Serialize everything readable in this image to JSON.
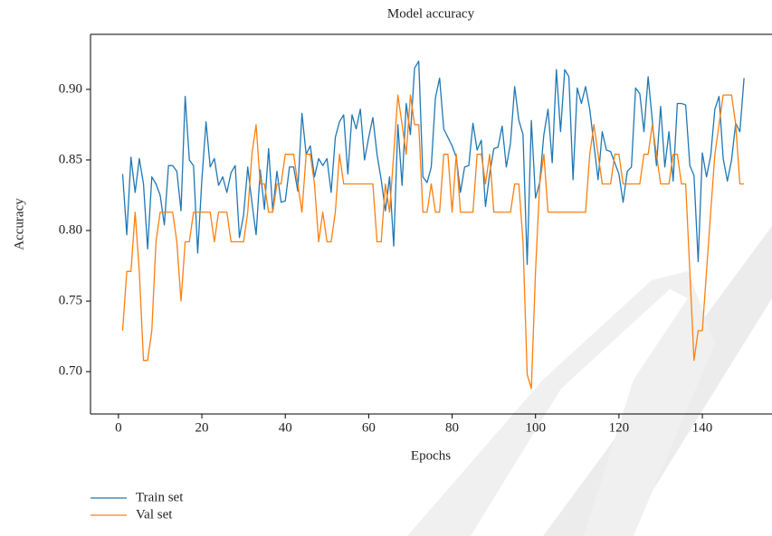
{
  "chart_data": {
    "type": "line",
    "title": "Model accuracy",
    "xlabel": "Epochs",
    "ylabel": "Accuracy",
    "x": [
      1,
      2,
      3,
      4,
      5,
      6,
      7,
      8,
      9,
      10,
      11,
      12,
      13,
      14,
      15,
      16,
      17,
      18,
      19,
      20,
      21,
      22,
      23,
      24,
      25,
      26,
      27,
      28,
      29,
      30,
      31,
      32,
      33,
      34,
      35,
      36,
      37,
      38,
      39,
      40,
      41,
      42,
      43,
      44,
      45,
      46,
      47,
      48,
      49,
      50,
      51,
      52,
      53,
      54,
      55,
      56,
      57,
      58,
      59,
      60,
      61,
      62,
      63,
      64,
      65,
      66,
      67,
      68,
      69,
      70,
      71,
      72,
      73,
      74,
      75,
      76,
      77,
      78,
      79,
      80,
      81,
      82,
      83,
      84,
      85,
      86,
      87,
      88,
      89,
      90,
      91,
      92,
      93,
      94,
      95,
      96,
      97,
      98,
      99,
      100,
      101,
      102,
      103,
      104,
      105,
      106,
      107,
      108,
      109,
      110,
      111,
      112,
      113,
      114,
      115,
      116,
      117,
      118,
      119,
      120,
      121,
      122,
      123,
      124,
      125,
      126,
      127,
      128,
      129,
      130,
      131,
      132,
      133,
      134,
      135,
      136,
      137,
      138,
      139,
      140,
      141,
      142,
      143,
      144,
      145,
      146,
      147,
      148,
      149,
      150
    ],
    "series": [
      {
        "name": "Train set",
        "color": "#1f77b4",
        "values": [
          0.84,
          0.797,
          0.852,
          0.827,
          0.851,
          0.833,
          0.787,
          0.838,
          0.833,
          0.825,
          0.804,
          0.846,
          0.846,
          0.842,
          0.814,
          0.895,
          0.85,
          0.846,
          0.784,
          0.836,
          0.877,
          0.845,
          0.851,
          0.832,
          0.838,
          0.827,
          0.841,
          0.846,
          0.795,
          0.811,
          0.845,
          0.82,
          0.797,
          0.843,
          0.815,
          0.858,
          0.814,
          0.842,
          0.82,
          0.821,
          0.845,
          0.845,
          0.828,
          0.883,
          0.854,
          0.86,
          0.838,
          0.851,
          0.846,
          0.851,
          0.827,
          0.866,
          0.877,
          0.882,
          0.84,
          0.882,
          0.872,
          0.886,
          0.85,
          0.866,
          0.88,
          0.854,
          0.836,
          0.814,
          0.838,
          0.789,
          0.875,
          0.832,
          0.89,
          0.868,
          0.915,
          0.92,
          0.838,
          0.834,
          0.845,
          0.894,
          0.908,
          0.872,
          0.866,
          0.86,
          0.852,
          0.827,
          0.845,
          0.846,
          0.876,
          0.857,
          0.864,
          0.817,
          0.84,
          0.858,
          0.859,
          0.874,
          0.845,
          0.862,
          0.902,
          0.878,
          0.868,
          0.776,
          0.878,
          0.823,
          0.834,
          0.868,
          0.886,
          0.848,
          0.914,
          0.87,
          0.914,
          0.909,
          0.836,
          0.901,
          0.89,
          0.902,
          0.886,
          0.861,
          0.836,
          0.87,
          0.857,
          0.856,
          0.848,
          0.84,
          0.82,
          0.842,
          0.845,
          0.901,
          0.897,
          0.87,
          0.909,
          0.878,
          0.846,
          0.888,
          0.845,
          0.87,
          0.835,
          0.89,
          0.89,
          0.889,
          0.846,
          0.839,
          0.778,
          0.855,
          0.838,
          0.853,
          0.886,
          0.895,
          0.851,
          0.835,
          0.85,
          0.876,
          0.87,
          0.908
        ]
      },
      {
        "name": "Val set",
        "color": "#ff7f0e",
        "values": [
          0.729,
          0.771,
          0.771,
          0.813,
          0.771,
          0.708,
          0.708,
          0.729,
          0.792,
          0.813,
          0.813,
          0.813,
          0.813,
          0.792,
          0.75,
          0.792,
          0.792,
          0.813,
          0.813,
          0.813,
          0.813,
          0.813,
          0.792,
          0.813,
          0.813,
          0.813,
          0.792,
          0.792,
          0.792,
          0.792,
          0.813,
          0.854,
          0.875,
          0.833,
          0.833,
          0.813,
          0.813,
          0.833,
          0.833,
          0.854,
          0.854,
          0.854,
          0.833,
          0.813,
          0.854,
          0.854,
          0.833,
          0.792,
          0.813,
          0.792,
          0.792,
          0.813,
          0.854,
          0.833,
          0.833,
          0.833,
          0.833,
          0.833,
          0.833,
          0.833,
          0.833,
          0.792,
          0.792,
          0.833,
          0.813,
          0.854,
          0.896,
          0.875,
          0.854,
          0.896,
          0.875,
          0.875,
          0.813,
          0.813,
          0.833,
          0.813,
          0.813,
          0.854,
          0.854,
          0.813,
          0.854,
          0.813,
          0.813,
          0.813,
          0.813,
          0.854,
          0.854,
          0.833,
          0.854,
          0.813,
          0.813,
          0.813,
          0.813,
          0.813,
          0.833,
          0.833,
          0.792,
          0.698,
          0.688,
          0.771,
          0.833,
          0.854,
          0.813,
          0.813,
          0.813,
          0.813,
          0.813,
          0.813,
          0.813,
          0.813,
          0.813,
          0.813,
          0.854,
          0.875,
          0.854,
          0.833,
          0.833,
          0.833,
          0.854,
          0.854,
          0.833,
          0.833,
          0.833,
          0.833,
          0.833,
          0.854,
          0.854,
          0.875,
          0.854,
          0.833,
          0.833,
          0.833,
          0.854,
          0.854,
          0.833,
          0.833,
          0.771,
          0.708,
          0.729,
          0.729,
          0.771,
          0.813,
          0.854,
          0.875,
          0.896,
          0.896,
          0.896,
          0.875,
          0.833,
          0.833
        ]
      }
    ],
    "xlim": [
      -6.7,
      156.7
    ],
    "ylim": [
      0.67,
      0.939
    ],
    "xticks": [
      0,
      20,
      40,
      60,
      80,
      100,
      120,
      140
    ],
    "yticks": [
      {
        "value": 0.7,
        "label": "0.70"
      },
      0.75,
      {
        "value": 0.8,
        "label": "0.80"
      },
      0.85,
      {
        "value": 0.9,
        "label": "0.90"
      }
    ],
    "legend": "below"
  }
}
